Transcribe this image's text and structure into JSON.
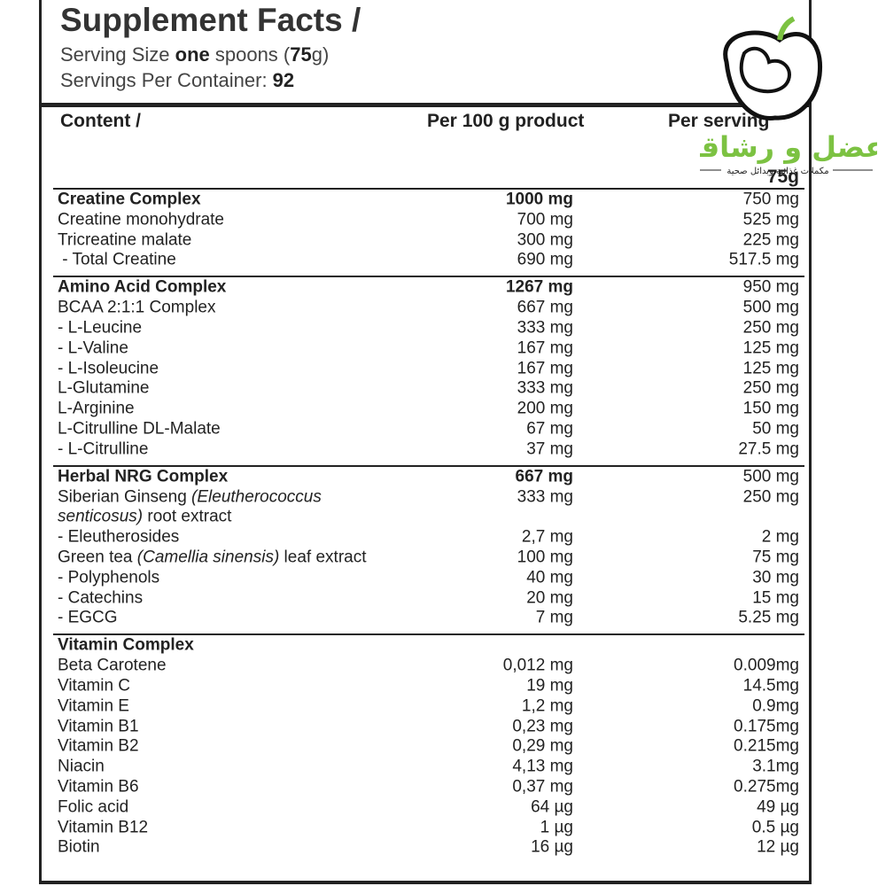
{
  "header": {
    "title": "Supplement Facts /",
    "serving_size": [
      "Serving Size ",
      {
        "text": "one",
        "bold": true
      },
      " spoons (",
      {
        "text": "75",
        "bold": true
      },
      "g)"
    ],
    "servings_per_container": [
      "Servings Per Container: ",
      {
        "text": "92",
        "bold": true
      }
    ]
  },
  "logo": {
    "name": "عضل و رشاقة",
    "tagline": "مكملات غذائية وبدائل صحية"
  },
  "columns": {
    "content": "Content /",
    "per_100g": "Per 100 g product",
    "per_serving": "Per serving",
    "serving_amount": "75g"
  },
  "sections": [
    {
      "title": "Creatine Complex",
      "per_100g": "1000 mg",
      "per_serving": "750 mg",
      "rows": [
        {
          "name": "Creatine monohydrate",
          "per_100g": "700 mg",
          "per_serving": "525 mg"
        },
        {
          "name": "Tricreatine malate",
          "per_100g": "300 mg",
          "per_serving": "225 mg"
        },
        {
          "name": " - Total Creatine",
          "per_100g": "690 mg",
          "per_serving": "517.5 mg"
        }
      ]
    },
    {
      "title": "Amino Acid Complex",
      "per_100g": "1267 mg",
      "per_serving": "950 mg",
      "rows": [
        {
          "name": "BCAA 2:1:1 Complex",
          "per_100g": "667 mg",
          "per_serving": "500 mg"
        },
        {
          "name": "- L-Leucine",
          "per_100g": "333 mg",
          "per_serving": "250 mg"
        },
        {
          "name": "- L-Valine",
          "per_100g": "167 mg",
          "per_serving": "125 mg"
        },
        {
          "name": "- L-Isoleucine",
          "per_100g": "167 mg",
          "per_serving": "125 mg"
        },
        {
          "name": "L-Glutamine",
          "per_100g": "333 mg",
          "per_serving": "250 mg"
        },
        {
          "name": "L-Arginine",
          "per_100g": "200 mg",
          "per_serving": "150 mg"
        },
        {
          "name": "L-Citrulline DL-Malate",
          "per_100g": "67 mg",
          "per_serving": "50 mg"
        },
        {
          "name": "- L-Citrulline",
          "per_100g": "37 mg",
          "per_serving": "27.5 mg"
        }
      ]
    },
    {
      "title": "Herbal NRG Complex",
      "per_100g": "667 mg",
      "per_serving": "500 mg",
      "rows": [
        {
          "name_lines": [
            [
              "Siberian Ginseng ",
              {
                "text": "(Eleutherococcus",
                "italic": true
              }
            ],
            [
              {
                "text": "senticosus)",
                "italic": true
              },
              " root extract"
            ]
          ],
          "per_100g": "333 mg",
          "per_serving": "250 mg"
        },
        {
          "name": "- Eleutherosides",
          "per_100g": "2,7 mg",
          "per_serving": "2 mg"
        },
        {
          "name_lines": [
            [
              "Green tea ",
              {
                "text": "(Camellia sinensis)",
                "italic": true
              },
              " leaf extract"
            ]
          ],
          "per_100g": "100 mg",
          "per_serving": "75 mg"
        },
        {
          "name": "- Polyphenols",
          "per_100g": "40 mg",
          "per_serving": "30 mg"
        },
        {
          "name": "- Catechins",
          "per_100g": "20 mg",
          "per_serving": "15 mg"
        },
        {
          "name": "- EGCG",
          "per_100g": "7 mg",
          "per_serving": "5.25 mg"
        }
      ]
    },
    {
      "title": "Vitamin Complex",
      "rows": [
        {
          "name": "Beta Carotene",
          "per_100g": "0,012 mg",
          "per_serving": "0.009mg"
        },
        {
          "name": "Vitamin C",
          "per_100g": "19 mg",
          "per_serving": "14.5mg"
        },
        {
          "name": "Vitamin E",
          "per_100g": "1,2 mg",
          "per_serving": "0.9mg"
        },
        {
          "name": "Vitamin B1",
          "per_100g": "0,23 mg",
          "per_serving": "0.175mg"
        },
        {
          "name": "Vitamin B2",
          "per_100g": "0,29 mg",
          "per_serving": "0.215mg"
        },
        {
          "name": "Niacin",
          "per_100g": "4,13 mg",
          "per_serving": "3.1mg"
        },
        {
          "name": "Vitamin B6",
          "per_100g": "0,37 mg",
          "per_serving": "0.275mg"
        },
        {
          "name": "Folic acid",
          "per_100g": "64 µg",
          "per_serving": "49 µg"
        },
        {
          "name": "Vitamin B12",
          "per_100g": "1 µg",
          "per_serving": "0.5 µg"
        },
        {
          "name": "Biotin",
          "per_100g": "16 µg",
          "per_serving": "12 µg"
        }
      ]
    }
  ]
}
